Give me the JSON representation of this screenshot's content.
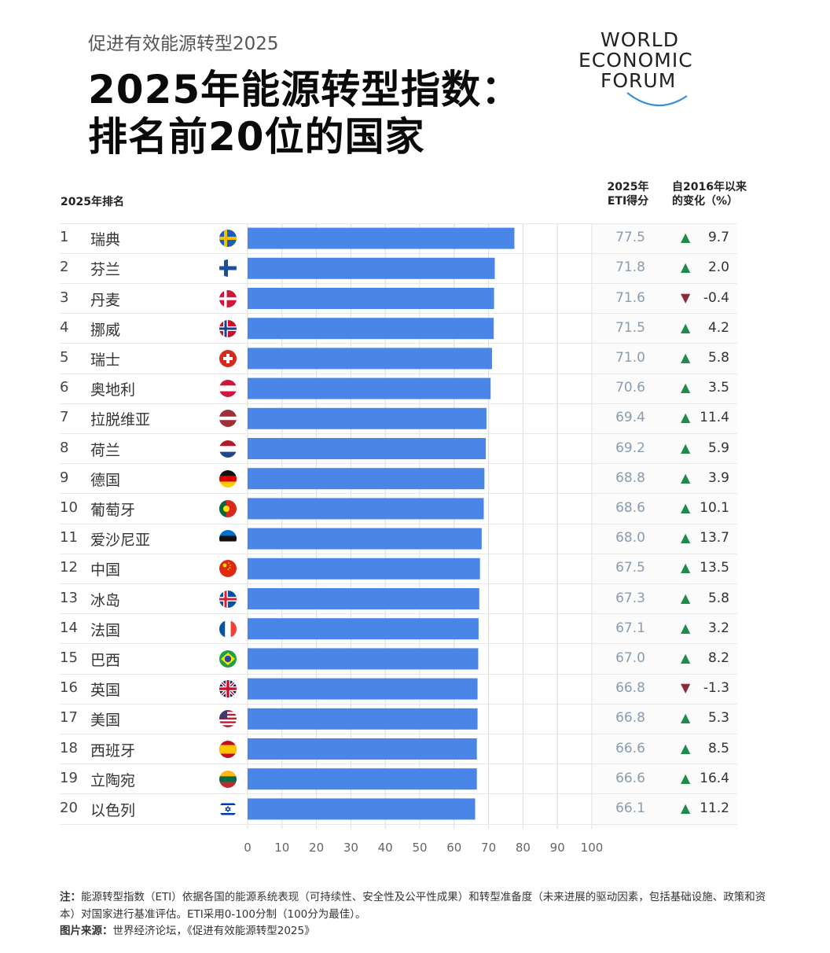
{
  "header": {
    "subtitle": "促进有效能源转型2025",
    "title_line1": "2025年能源转型指数：",
    "title_line2": "排名前20位的国家",
    "logo": [
      "WORLD",
      "ECONOMIC",
      "FORUM"
    ]
  },
  "columns": {
    "rank": "2025年排名",
    "score_line1": "2025年",
    "score_line2": "ETI得分",
    "change_line1": "自2016年以来",
    "change_line2": "的变化（%）"
  },
  "colors": {
    "bar": "#4a86e8",
    "up": "#1f8a4c",
    "down": "#8b2a3a"
  },
  "chart_data": {
    "type": "bar",
    "orientation": "horizontal",
    "xlim": [
      0,
      100
    ],
    "xticks": [
      "0",
      "10",
      "20",
      "30",
      "40",
      "50",
      "60",
      "70",
      "80",
      "90",
      "100"
    ],
    "grid": true,
    "rows": [
      {
        "rank": "1",
        "country": "瑞典",
        "flag": "sweden-flag",
        "score": "77.5",
        "value": 77.5,
        "change": "9.7",
        "dir": "up"
      },
      {
        "rank": "2",
        "country": "芬兰",
        "flag": "finland-flag",
        "score": "71.8",
        "value": 71.8,
        "change": "2.0",
        "dir": "up"
      },
      {
        "rank": "3",
        "country": "丹麦",
        "flag": "denmark-flag",
        "score": "71.6",
        "value": 71.6,
        "change": "-0.4",
        "dir": "down"
      },
      {
        "rank": "4",
        "country": "挪威",
        "flag": "norway-flag",
        "score": "71.5",
        "value": 71.5,
        "change": "4.2",
        "dir": "up"
      },
      {
        "rank": "5",
        "country": "瑞士",
        "flag": "switzerland-flag",
        "score": "71.0",
        "value": 71.0,
        "change": "5.8",
        "dir": "up"
      },
      {
        "rank": "6",
        "country": "奥地利",
        "flag": "austria-flag",
        "score": "70.6",
        "value": 70.6,
        "change": "3.5",
        "dir": "up"
      },
      {
        "rank": "7",
        "country": "拉脱维亚",
        "flag": "latvia-flag",
        "score": "69.4",
        "value": 69.4,
        "change": "11.4",
        "dir": "up"
      },
      {
        "rank": "8",
        "country": "荷兰",
        "flag": "netherlands-flag",
        "score": "69.2",
        "value": 69.2,
        "change": "5.9",
        "dir": "up"
      },
      {
        "rank": "9",
        "country": "德国",
        "flag": "germany-flag",
        "score": "68.8",
        "value": 68.8,
        "change": "3.9",
        "dir": "up"
      },
      {
        "rank": "10",
        "country": "葡萄牙",
        "flag": "portugal-flag",
        "score": "68.6",
        "value": 68.6,
        "change": "10.1",
        "dir": "up"
      },
      {
        "rank": "11",
        "country": "爱沙尼亚",
        "flag": "estonia-flag",
        "score": "68.0",
        "value": 68.0,
        "change": "13.7",
        "dir": "up"
      },
      {
        "rank": "12",
        "country": "中国",
        "flag": "china-flag",
        "score": "67.5",
        "value": 67.5,
        "change": "13.5",
        "dir": "up"
      },
      {
        "rank": "13",
        "country": "冰岛",
        "flag": "iceland-flag",
        "score": "67.3",
        "value": 67.3,
        "change": "5.8",
        "dir": "up"
      },
      {
        "rank": "14",
        "country": "法国",
        "flag": "france-flag",
        "score": "67.1",
        "value": 67.1,
        "change": "3.2",
        "dir": "up"
      },
      {
        "rank": "15",
        "country": "巴西",
        "flag": "brazil-flag",
        "score": "67.0",
        "value": 67.0,
        "change": "8.2",
        "dir": "up"
      },
      {
        "rank": "16",
        "country": "英国",
        "flag": "uk-flag",
        "score": "66.8",
        "value": 66.8,
        "change": "-1.3",
        "dir": "down"
      },
      {
        "rank": "17",
        "country": "美国",
        "flag": "usa-flag",
        "score": "66.8",
        "value": 66.8,
        "change": "5.3",
        "dir": "up"
      },
      {
        "rank": "18",
        "country": "西班牙",
        "flag": "spain-flag",
        "score": "66.6",
        "value": 66.6,
        "change": "8.5",
        "dir": "up"
      },
      {
        "rank": "19",
        "country": "立陶宛",
        "flag": "lithuania-flag",
        "score": "66.6",
        "value": 66.6,
        "change": "16.4",
        "dir": "up"
      },
      {
        "rank": "20",
        "country": "以色列",
        "flag": "israel-flag",
        "score": "66.1",
        "value": 66.1,
        "change": "11.2",
        "dir": "up"
      }
    ]
  },
  "footer": {
    "note_label": "注：",
    "note_text": "能源转型指数（ETI）依据各国的能源系统表现（可持续性、安全性及公平性成果）和转型准备度（未来进展的驱动因素，包括基础设施、政策和资本）对国家进行基准评估。ETI采用0-100分制（100分为最佳）。",
    "source_label": "图片来源：",
    "source_text": "世界经济论坛，《促进有效能源转型2025》"
  }
}
